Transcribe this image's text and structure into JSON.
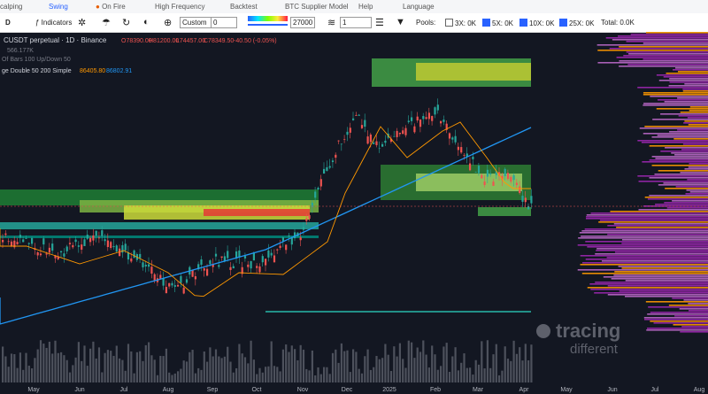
{
  "menu": [
    "calping",
    "Swing",
    "On Fire",
    "High Frequency",
    "Backtest",
    "BTC Supplier Model",
    "Help",
    "Language"
  ],
  "toolbar": {
    "interval": "D",
    "indicators": "Indicators",
    "preset": "Custom",
    "preset_input": "0",
    "slider_value": "27000",
    "layers": "1",
    "pools_label": "Pools:",
    "pools": [
      "3X: 0K",
      "5X: 0K",
      "10X: 0K",
      "25X: 0K"
    ],
    "total": "Total: 0.0K"
  },
  "legend": {
    "symbol": "CUSDT perpetual · 1D · Binance",
    "open": "O78390.00",
    "high": "H81200.00",
    "low": "L74457.00",
    "close": "C78349.50",
    "change": "-40.50 (-0.05%)",
    "volume": "566.177K",
    "bars": "Of Bars 100 Up/Down 50",
    "ma": "ge Double 50 200 Simple",
    "ma1": "86405.80",
    "ma2": "86802.91"
  },
  "x_axis": [
    "May",
    "Jun",
    "Jul",
    "Aug",
    "Sep",
    "Oct",
    "Nov",
    "Dec",
    "2025",
    "Feb",
    "Mar",
    "Apr",
    "May",
    "Jun",
    "Jul",
    "Aug"
  ],
  "watermark": {
    "line1": "tracing",
    "line2": "different"
  }
}
